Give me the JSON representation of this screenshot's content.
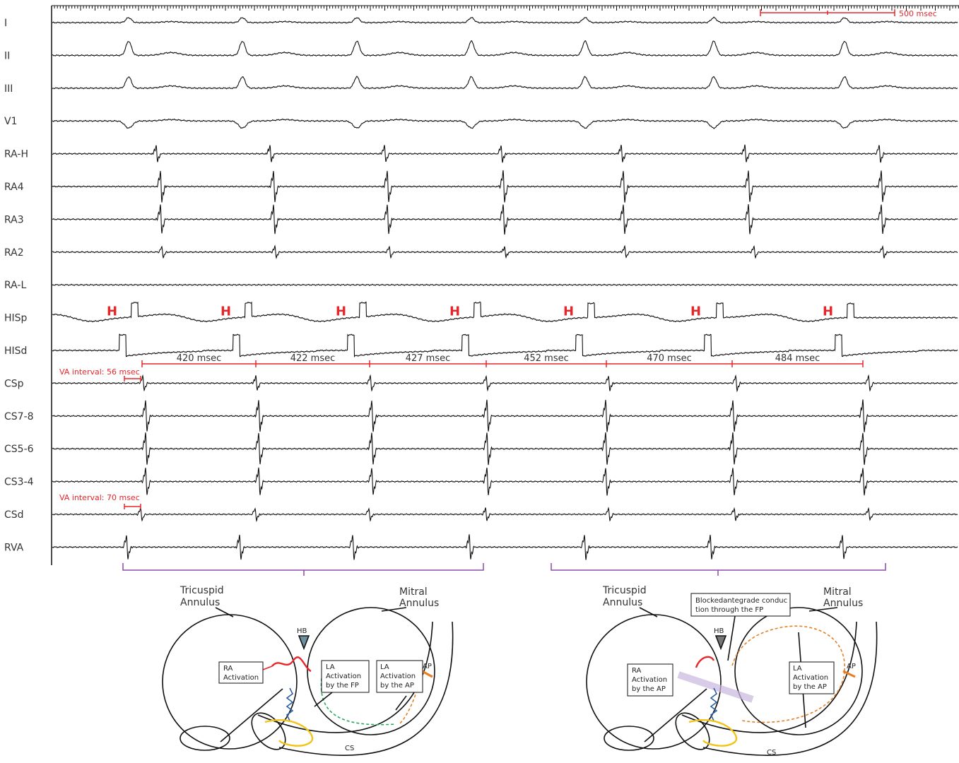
{
  "scale_bar": "500 msec",
  "channels": [
    "I",
    "II",
    "III",
    "V1",
    "RA-H",
    "RA4",
    "RA3",
    "RA2",
    "RA-L",
    "HISp",
    "HISd",
    "CSp",
    "CS7-8",
    "CS5-6",
    "CS3-4",
    "CSd",
    "RVA"
  ],
  "his_markers": [
    "H",
    "H",
    "H",
    "H",
    "H",
    "H",
    "H"
  ],
  "cycle_lengths": [
    "420 msec",
    "422 msec",
    "427 msec",
    "452 msec",
    "470 msec",
    "484 msec"
  ],
  "va_intervals": [
    "VA interval: 56 msec",
    "VA interval: 70 msec"
  ],
  "diagrams": [
    {
      "tricuspid": [
        "Tricuspid",
        "Annulus"
      ],
      "mitral": [
        "Mitral",
        "Annulus"
      ],
      "hb": "HB",
      "ap": "AP",
      "cs": "CS",
      "boxes": [
        [
          "RA",
          "Activation"
        ],
        [
          "LA",
          "Activation",
          "by the FP"
        ],
        [
          "LA",
          "Activation",
          "by the AP"
        ]
      ]
    },
    {
      "tricuspid": [
        "Tricuspid",
        "Annulus"
      ],
      "mitral": [
        "Mitral",
        "Annulus"
      ],
      "hb": "HB",
      "ap": "AP",
      "cs": "CS",
      "boxes": [
        [
          "Blockedantegrade conduc",
          "tion through the FP"
        ],
        [
          "RA",
          "Activation",
          "by the AP"
        ],
        [
          "LA",
          "Activation",
          "by the AP"
        ]
      ]
    }
  ]
}
